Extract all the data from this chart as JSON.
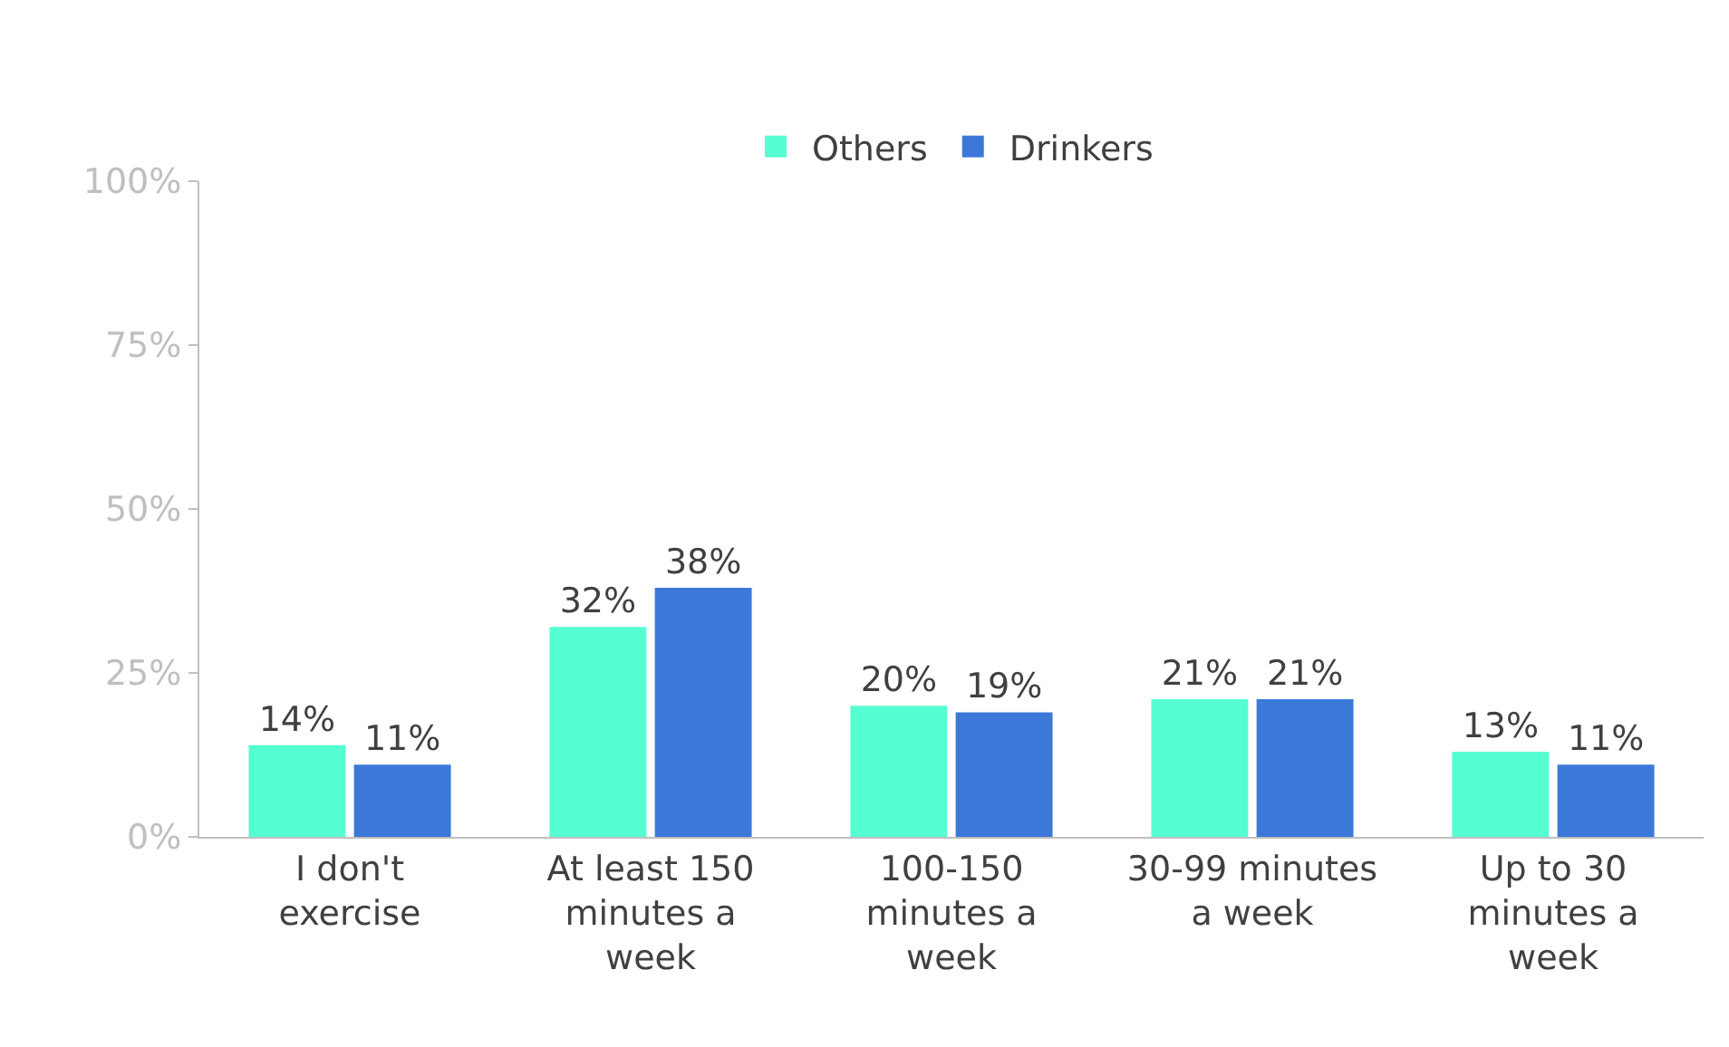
{
  "chart_data": {
    "type": "bar",
    "categories": [
      "I don't exercise",
      "At least 150 minutes a week",
      "100-150 minutes a week",
      "30-99 minutes a week",
      "Up to 30 minutes a week"
    ],
    "series": [
      {
        "name": "Others",
        "color": "#55ffd2",
        "values": [
          14,
          32,
          20,
          21,
          13
        ],
        "value_labels": [
          "14%",
          "32%",
          "20%",
          "21%",
          "13%"
        ]
      },
      {
        "name": "Drinkers",
        "color": "#3b78d8",
        "values": [
          11,
          38,
          19,
          21,
          11
        ],
        "value_labels": [
          "11%",
          "38%",
          "19%",
          "21%",
          "11%"
        ]
      }
    ],
    "ylim": [
      0,
      100
    ],
    "yticks": [
      {
        "value": 0,
        "label": "0%"
      },
      {
        "value": 25,
        "label": "25%"
      },
      {
        "value": 50,
        "label": "50%"
      },
      {
        "value": 75,
        "label": "75%"
      },
      {
        "value": 100,
        "label": "100%"
      }
    ],
    "legend": "top"
  }
}
